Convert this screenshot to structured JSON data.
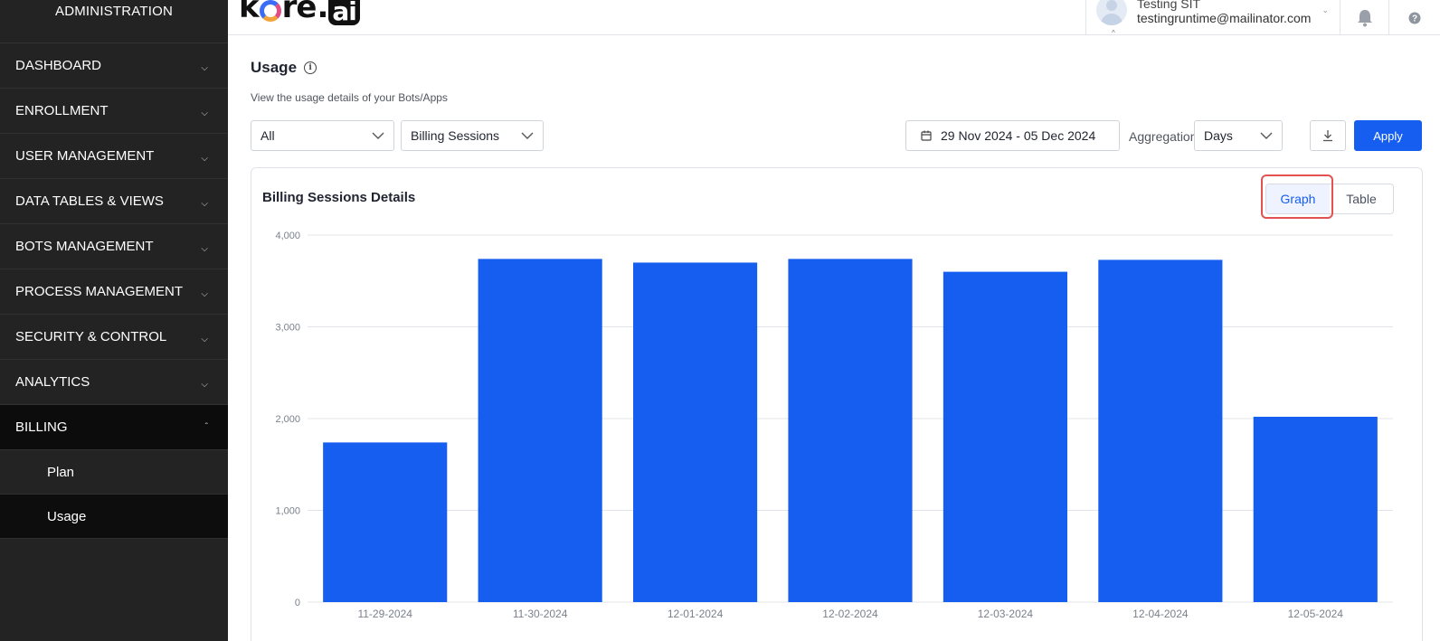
{
  "sidebar": {
    "title": "ADMINISTRATION",
    "items": [
      {
        "label": "DASHBOARD"
      },
      {
        "label": "ENROLLMENT"
      },
      {
        "label": "USER MANAGEMENT"
      },
      {
        "label": "DATA TABLES & VIEWS"
      },
      {
        "label": "BOTS MANAGEMENT"
      },
      {
        "label": "PROCESS MANAGEMENT"
      },
      {
        "label": "SECURITY & CONTROL"
      },
      {
        "label": "ANALYTICS"
      },
      {
        "label": "BILLING"
      }
    ],
    "billing_sub": [
      {
        "label": "Plan"
      },
      {
        "label": "Usage"
      }
    ]
  },
  "header": {
    "logo_text": "kore",
    "logo_ai": "ai",
    "user_name": "Testing SIT",
    "user_email": "testingruntime@mailinator.com"
  },
  "page": {
    "title": "Usage",
    "subtitle": "View the usage details of your Bots/Apps"
  },
  "filters": {
    "bot_filter": "All",
    "metric_filter": "Billing Sessions",
    "date_range": "29 Nov 2024 - 05 Dec 2024",
    "aggregation_label": "Aggregation",
    "aggregation_value": "Days",
    "apply_label": "Apply"
  },
  "card": {
    "title": "Billing Sessions Details",
    "toggle_graph": "Graph",
    "toggle_table": "Table"
  },
  "colors": {
    "bar": "#155eef",
    "sidebar_bg": "#232323",
    "accent": "#155eef"
  },
  "chart_data": {
    "type": "bar",
    "title": "Billing Sessions Details",
    "categories": [
      "11-29-2024",
      "11-30-2024",
      "12-01-2024",
      "12-02-2024",
      "12-03-2024",
      "12-04-2024",
      "12-05-2024"
    ],
    "values": [
      1740,
      3740,
      3700,
      3740,
      3600,
      3730,
      2020
    ],
    "yticks": [
      "0",
      "1,000",
      "2,000",
      "3,000",
      "4,000"
    ],
    "ylim": [
      0,
      4000
    ],
    "xlabel": "",
    "ylabel": "",
    "grid": true
  }
}
